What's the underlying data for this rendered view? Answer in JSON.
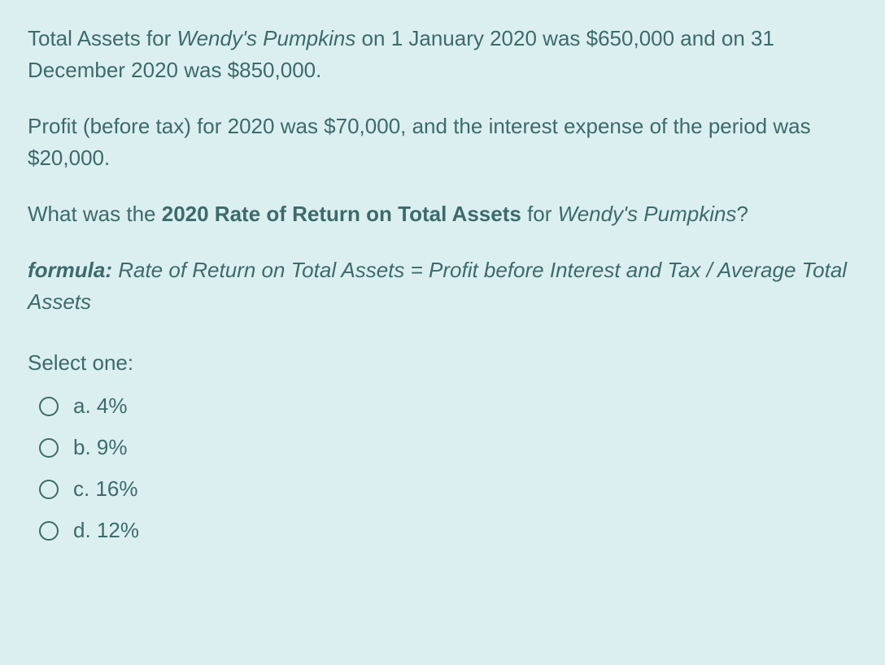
{
  "question": {
    "p1_part1": "Total Assets for ",
    "p1_company": "Wendy's Pumpkins",
    "p1_part2": " on 1 January 2020 was $650,000 and on 31 December 2020 was $850,000.",
    "p2": "Profit (before tax) for 2020 was $70,000, and the interest expense of the period was $20,000.",
    "p3_part1": "What was the ",
    "p3_bold": "2020 Rate of Return on Total Assets",
    "p3_part2": " for ",
    "p3_company": "Wendy's Pumpkins",
    "p3_part3": "?",
    "formula_label": "formula:",
    "formula_text": " Rate of Return on Total Assets = Profit before Interest and Tax / Average Total Assets"
  },
  "select_label": "Select one:",
  "options": {
    "a": "a. 4%",
    "b": "b. 9%",
    "c": "c. 16%",
    "d": "d. 12%"
  },
  "colors": {
    "background": "#dceff0",
    "text": "#3b6b6b"
  }
}
